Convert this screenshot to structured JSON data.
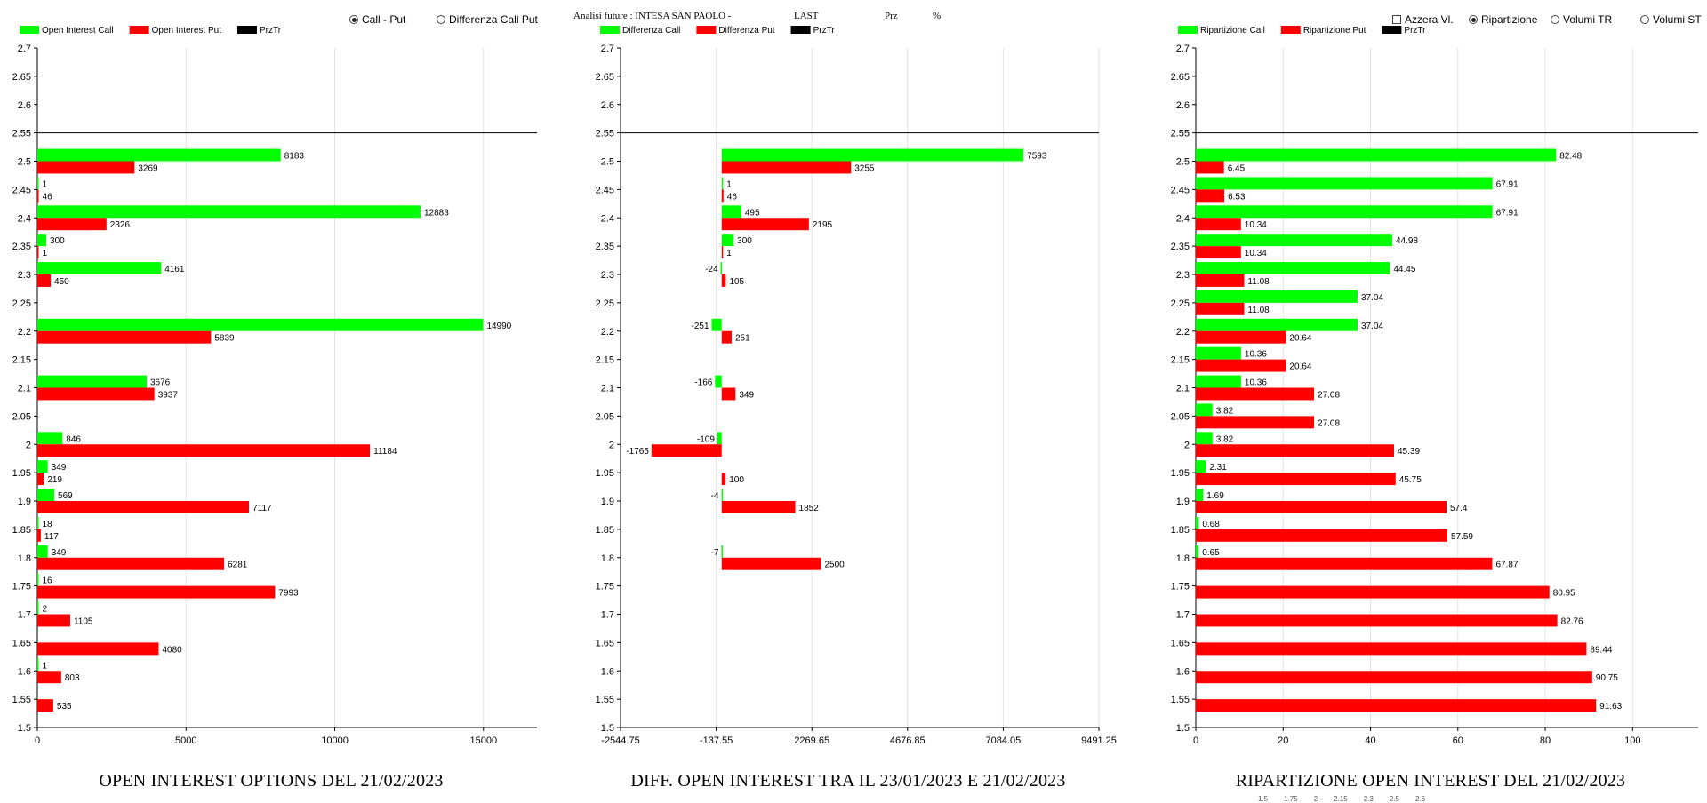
{
  "controls": {
    "call_put": {
      "label": "Call - Put",
      "selected": true
    },
    "diff_call_put": {
      "label": "Differenza Call Put",
      "selected": false
    },
    "azzera": {
      "label": "Azzera Vl.",
      "checked": false
    },
    "ripartizione": {
      "label": "Ripartizione",
      "selected": true
    },
    "volumi_tr": {
      "label": "Volumi TR",
      "selected": false
    },
    "volumi_st": {
      "label": "Volumi ST",
      "selected": false
    }
  },
  "header": {
    "analisi": "Analisi future : INTESA SAN PAOLO -",
    "last": "LAST",
    "prz": "Prz",
    "pct": "%"
  },
  "colors": {
    "call": "#00ff00",
    "put": "#ff0000",
    "prz": "#000000"
  },
  "chart_data": [
    {
      "type": "bar",
      "orientation": "horizontal",
      "title": "OPEN INTEREST OPTIONS DEL 21/02/2023",
      "legend": [
        "Open Interest Call",
        "Open Interest Put",
        "PrzTr"
      ],
      "legend_position": "top-left",
      "categories": [
        "2.5",
        "2.45",
        "2.4",
        "2.35",
        "2.3",
        "2.2",
        "2.1",
        "2",
        "1.95",
        "1.9",
        "1.85",
        "1.8",
        "1.75",
        "1.7",
        "1.65",
        "1.6",
        "1.55"
      ],
      "series": [
        {
          "name": "Open Interest Call",
          "color": "#00ff00",
          "values": [
            8183,
            1,
            12883,
            300,
            4161,
            14990,
            3676,
            846,
            349,
            569,
            18,
            349,
            16,
            2,
            null,
            1,
            null
          ]
        },
        {
          "name": "Open Interest Put",
          "color": "#ff0000",
          "values": [
            3269,
            46,
            2326,
            1,
            450,
            5839,
            3937,
            11184,
            219,
            7117,
            117,
            6281,
            7993,
            1105,
            4080,
            803,
            535
          ]
        }
      ],
      "y_ticks": [
        "2.7",
        "2.65",
        "2.6",
        "2.55",
        "2.5",
        "2.45",
        "2.4",
        "2.35",
        "2.3",
        "2.25",
        "2.2",
        "2.15",
        "2.1",
        "2.05",
        "2",
        "1.95",
        "1.9",
        "1.85",
        "1.8",
        "1.75",
        "1.7",
        "1.65",
        "1.6",
        "1.55",
        "1.5"
      ],
      "ylim": [
        1.5,
        2.7
      ],
      "x_ticks": [
        "0",
        "5000",
        "10000",
        "15000"
      ],
      "xlim": [
        0,
        16800
      ],
      "reference_line": 2.55,
      "grid": "vertical"
    },
    {
      "type": "bar",
      "orientation": "horizontal",
      "title": "DIFF. OPEN INTEREST TRA IL 23/01/2023 E 21/02/2023",
      "legend": [
        "Differenza Call",
        "Differenza Put",
        "PrzTr"
      ],
      "legend_position": "top-left",
      "categories": [
        "2.5",
        "2.45",
        "2.4",
        "2.35",
        "2.3",
        "2.2",
        "2.1",
        "2",
        "1.95",
        "1.9",
        "1.8"
      ],
      "series": [
        {
          "name": "Differenza Call",
          "color": "#00ff00",
          "values": [
            7593,
            1,
            495,
            300,
            -24,
            -251,
            -166,
            -109,
            null,
            -4,
            -7
          ]
        },
        {
          "name": "Differenza Put",
          "color": "#ff0000",
          "values": [
            3255,
            46,
            2195,
            1,
            105,
            251,
            349,
            -1765,
            100,
            1852,
            2500
          ]
        }
      ],
      "y_ticks": [
        "2.7",
        "2.65",
        "2.6",
        "2.55",
        "2.5",
        "2.45",
        "2.4",
        "2.35",
        "2.3",
        "2.25",
        "2.2",
        "2.15",
        "2.1",
        "2.05",
        "2",
        "1.95",
        "1.9",
        "1.85",
        "1.8",
        "1.75",
        "1.7",
        "1.65",
        "1.6",
        "1.55",
        "1.5"
      ],
      "ylim": [
        1.5,
        2.7
      ],
      "x_ticks": [
        "-2544.75",
        "-137.55",
        "2269.65",
        "4676.85",
        "7084.05",
        "9491.25"
      ],
      "xlim": [
        -2544.75,
        9491.25
      ],
      "reference_line": 2.55,
      "grid": "vertical"
    },
    {
      "type": "bar",
      "orientation": "horizontal",
      "title": "RIPARTIZIONE OPEN INTEREST DEL 21/02/2023",
      "legend": [
        "Ripartizione Call",
        "Ripartizione Put",
        "PrzTr"
      ],
      "legend_position": "top-left",
      "categories": [
        "2.5",
        "2.45",
        "2.4",
        "2.35",
        "2.3",
        "2.25",
        "2.2",
        "2.15",
        "2.1",
        "2.05",
        "2",
        "1.95",
        "1.9",
        "1.85",
        "1.8",
        "1.75",
        "1.7",
        "1.65",
        "1.6",
        "1.55"
      ],
      "series": [
        {
          "name": "Ripartizione Call",
          "color": "#00ff00",
          "values": [
            82.48,
            67.91,
            67.91,
            44.98,
            44.45,
            37.04,
            37.04,
            10.36,
            10.36,
            3.82,
            3.82,
            2.31,
            1.69,
            0.68,
            0.65,
            null,
            null,
            null,
            null,
            null
          ]
        },
        {
          "name": "Ripartizione Put",
          "color": "#ff0000",
          "values": [
            6.45,
            6.53,
            10.34,
            10.34,
            11.08,
            11.08,
            20.64,
            20.64,
            27.08,
            27.08,
            45.39,
            45.75,
            57.4,
            57.59,
            67.87,
            80.95,
            82.76,
            89.44,
            90.75,
            91.63
          ]
        }
      ],
      "y_ticks": [
        "2.7",
        "2.65",
        "2.6",
        "2.55",
        "2.5",
        "2.45",
        "2.4",
        "2.35",
        "2.3",
        "2.25",
        "2.2",
        "2.15",
        "2.1",
        "2.05",
        "2",
        "1.95",
        "1.9",
        "1.85",
        "1.8",
        "1.75",
        "1.7",
        "1.65",
        "1.6",
        "1.55",
        "1.5"
      ],
      "ylim": [
        1.5,
        2.7
      ],
      "x_ticks": [
        "0",
        "20",
        "40",
        "60",
        "80",
        "100"
      ],
      "xlim": [
        0,
        115
      ],
      "reference_line": 2.55,
      "grid": "vertical"
    }
  ],
  "bottom_ticks": [
    "1.5",
    "1.75",
    "2",
    "2.15",
    "2.3",
    "2.5",
    "2.6"
  ]
}
